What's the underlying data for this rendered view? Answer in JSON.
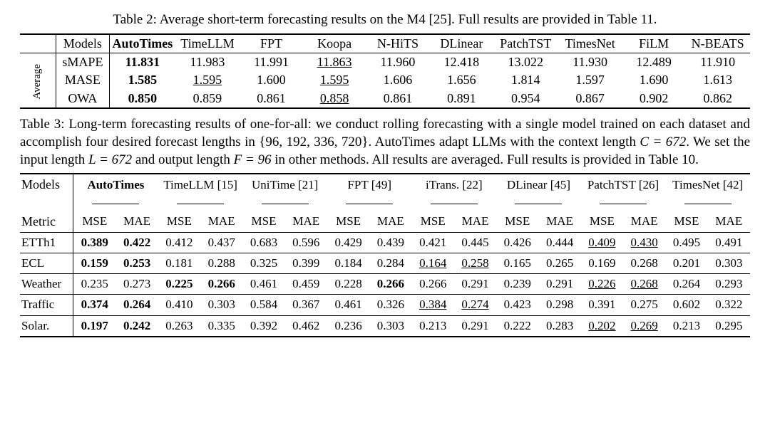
{
  "colors": {
    "text": "#000000",
    "background": "#ffffff",
    "rule": "#000000"
  },
  "typography": {
    "font_family": "Times New Roman",
    "caption_fontsize_pt": 14,
    "table_fontsize_pt": 13
  },
  "table2": {
    "caption": "Table 2: Average short-term forecasting results on the M4 [25]. Full results are provided in Table 11.",
    "models_label": "Models",
    "average_label": "Average",
    "columns": [
      "AutoTimes",
      "TimeLLM",
      "FPT",
      "Koopa",
      "N-HiTS",
      "DLinear",
      "PatchTST",
      "TimesNet",
      "FiLM",
      "N-BEATS"
    ],
    "bold_columns": [
      0
    ],
    "metrics": [
      "sMAPE",
      "MASE",
      "OWA"
    ],
    "rows": [
      [
        "11.831",
        "11.983",
        "11.991",
        "11.863",
        "11.960",
        "12.418",
        "13.022",
        "11.930",
        "12.489",
        "11.910"
      ],
      [
        "1.585",
        "1.595",
        "1.600",
        "1.595",
        "1.606",
        "1.656",
        "1.814",
        "1.597",
        "1.690",
        "1.613"
      ],
      [
        "0.850",
        "0.859",
        "0.861",
        "0.858",
        "0.861",
        "0.891",
        "0.954",
        "0.867",
        "0.902",
        "0.862"
      ]
    ],
    "cell_style": [
      [
        "bold",
        "",
        "",
        "uline",
        "",
        "",
        "",
        "",
        "",
        ""
      ],
      [
        "bold",
        "uline",
        "",
        "uline",
        "",
        "",
        "",
        "",
        "",
        ""
      ],
      [
        "bold",
        "",
        "",
        "uline",
        "",
        "",
        "",
        "",
        "",
        ""
      ]
    ]
  },
  "table3": {
    "caption_parts": {
      "p1": "Table 3: Long-term forecasting results of one-for-all: we conduct rolling forecasting with a single model trained on each dataset and accomplish four desired forecast lengths in {96, 192, 336, 720}. AutoTimes adapt LLMs with the context length ",
      "c_eq": "C = 672",
      "p2": ". We set the input length ",
      "l_eq": "L = 672",
      "p3": " and output length ",
      "f_eq": "F = 96",
      "p4": " in other methods. All results are averaged. Full results is provided in Table 10."
    },
    "models_label": "Models",
    "metric_label": "Metric",
    "model_columns": [
      "AutoTimes",
      "TimeLLM [15]",
      "UniTime [21]",
      "FPT [49]",
      "iTrans. [22]",
      "DLinear [45]",
      "PatchTST [26]",
      "TimesNet [42]"
    ],
    "model_bold": [
      true,
      false,
      false,
      false,
      false,
      false,
      false,
      false
    ],
    "sub_metrics": [
      "MSE",
      "MAE"
    ],
    "datasets": [
      "ETTh1",
      "ECL",
      "Weather",
      "Traffic",
      "Solar."
    ],
    "values": [
      [
        "0.389",
        "0.422",
        "0.412",
        "0.437",
        "0.683",
        "0.596",
        "0.429",
        "0.439",
        "0.421",
        "0.445",
        "0.426",
        "0.444",
        "0.409",
        "0.430",
        "0.495",
        "0.491"
      ],
      [
        "0.159",
        "0.253",
        "0.181",
        "0.288",
        "0.325",
        "0.399",
        "0.184",
        "0.284",
        "0.164",
        "0.258",
        "0.165",
        "0.265",
        "0.169",
        "0.268",
        "0.201",
        "0.303"
      ],
      [
        "0.235",
        "0.273",
        "0.225",
        "0.266",
        "0.461",
        "0.459",
        "0.228",
        "0.266",
        "0.266",
        "0.291",
        "0.239",
        "0.291",
        "0.226",
        "0.268",
        "0.264",
        "0.293"
      ],
      [
        "0.374",
        "0.264",
        "0.410",
        "0.303",
        "0.584",
        "0.367",
        "0.461",
        "0.326",
        "0.384",
        "0.274",
        "0.423",
        "0.298",
        "0.391",
        "0.275",
        "0.602",
        "0.322"
      ],
      [
        "0.197",
        "0.242",
        "0.263",
        "0.335",
        "0.392",
        "0.462",
        "0.236",
        "0.303",
        "0.213",
        "0.291",
        "0.222",
        "0.283",
        "0.202",
        "0.269",
        "0.213",
        "0.295"
      ]
    ],
    "cell_style": [
      [
        "bold",
        "bold",
        "",
        "",
        "",
        "",
        "",
        "",
        "",
        "",
        "",
        "",
        "uline",
        "uline",
        "",
        ""
      ],
      [
        "bold",
        "bold",
        "",
        "",
        "",
        "",
        "",
        "",
        "uline",
        "uline",
        "",
        "",
        "",
        "",
        "",
        ""
      ],
      [
        "",
        "",
        "bold",
        "bold",
        "",
        "",
        "",
        "bold",
        "",
        "",
        "",
        "",
        "uline",
        "uline",
        "",
        ""
      ],
      [
        "bold",
        "bold",
        "",
        "",
        "",
        "",
        "",
        "",
        "uline",
        "uline",
        "",
        "",
        "",
        "",
        "",
        ""
      ],
      [
        "bold",
        "bold",
        "",
        "",
        "",
        "",
        "",
        "",
        "",
        "",
        "",
        "",
        "uline",
        "uline",
        "",
        ""
      ]
    ]
  }
}
